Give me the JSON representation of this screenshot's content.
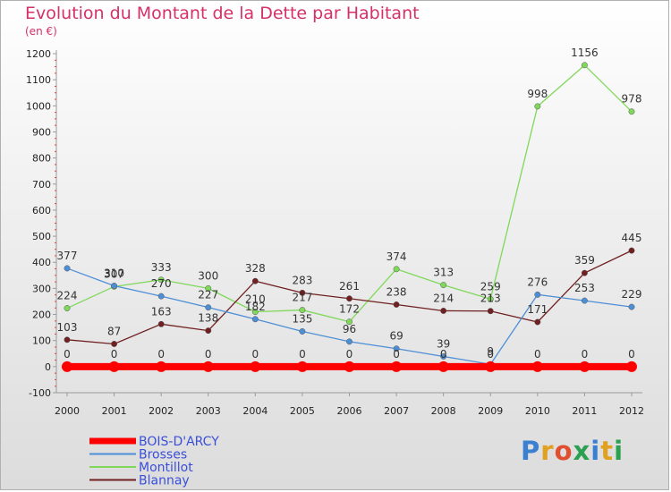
{
  "header": {
    "title": "Evolution du Montant de la Dette par Habitant",
    "subtitle": "(en €)"
  },
  "logo": {
    "text": "Proxiti",
    "colors": [
      "#3a7fd0",
      "#e0a020",
      "#e05030",
      "#2aa050",
      "#3a7fd0",
      "#e0a020",
      "#2aa050"
    ]
  },
  "chart_data": {
    "type": "line",
    "title": "Evolution du Montant de la Dette par Habitant",
    "subtitle": "(en €)",
    "xlabel": "",
    "ylabel": "",
    "x": [
      "2000",
      "2001",
      "2002",
      "2003",
      "2004",
      "2005",
      "2006",
      "2007",
      "2008",
      "2009",
      "2010",
      "2011",
      "2012"
    ],
    "ylim": [
      -100,
      1200
    ],
    "yticks": [
      -100,
      0,
      100,
      200,
      300,
      400,
      500,
      600,
      700,
      800,
      900,
      1000,
      1100,
      1200
    ],
    "grid": false,
    "legend_position": "bottom-left",
    "series": [
      {
        "name": "BOIS-D'ARCY",
        "color": "#ff0000",
        "values": [
          0,
          0,
          0,
          0,
          0,
          0,
          0,
          0,
          0,
          0,
          0,
          0,
          0
        ],
        "labels": [
          "0",
          "0",
          "0",
          "0",
          "0",
          "0",
          "0",
          "0",
          "0",
          "0",
          "0",
          "0",
          "0"
        ]
      },
      {
        "name": "Brosses",
        "color": "#4d8fd6",
        "values": [
          377,
          310,
          270,
          227,
          182,
          135,
          96,
          69,
          39,
          9,
          276,
          253,
          229
        ],
        "labels": [
          "377",
          "310",
          "270",
          "227",
          "182",
          "135",
          "96",
          "69",
          "39",
          "9",
          "276",
          "253",
          "229"
        ]
      },
      {
        "name": "Montillot",
        "color": "#7fd85a",
        "values": [
          224,
          307,
          333,
          300,
          210,
          217,
          172,
          374,
          313,
          259,
          998,
          1156,
          978
        ],
        "labels": [
          "224",
          "307",
          "333",
          "300",
          "210",
          "217",
          "172",
          "374",
          "313",
          "259",
          "998",
          "1156",
          "978"
        ]
      },
      {
        "name": "Blannay",
        "color": "#702020",
        "values": [
          103,
          87,
          163,
          138,
          328,
          283,
          261,
          238,
          214,
          213,
          171,
          359,
          445
        ],
        "labels": [
          "103",
          "87",
          "163",
          "138",
          "328",
          "283",
          "261",
          "238",
          "214",
          "213",
          "171",
          "359",
          "445"
        ]
      }
    ]
  }
}
